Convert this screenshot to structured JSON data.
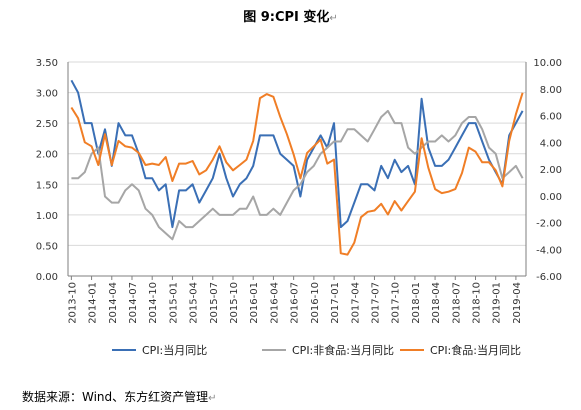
{
  "page": {
    "title": "图 9:CPI 变化",
    "source": "数据来源：Wind、东方红资产管理"
  },
  "colors": {
    "cpi": "#3a6fb5",
    "nonfood": "#a6a6a6",
    "food": "#f07e26",
    "axis": "#7f7f7f",
    "grid": "#d9d9d9"
  },
  "chart_data": {
    "type": "line",
    "x_labels": [
      "2013-10",
      "2014-01",
      "2014-04",
      "2014-07",
      "2014-10",
      "2015-01",
      "2015-04",
      "2015-07",
      "2015-10",
      "2016-01",
      "2016-04",
      "2016-07",
      "2016-10",
      "2017-01",
      "2017-04",
      "2017-07",
      "2017-10",
      "2018-01",
      "2018-04",
      "2018-07",
      "2018-10",
      "2019-01",
      "2019-04"
    ],
    "x": [
      "2013-10",
      "2013-11",
      "2013-12",
      "2014-01",
      "2014-02",
      "2014-03",
      "2014-04",
      "2014-05",
      "2014-06",
      "2014-07",
      "2014-08",
      "2014-09",
      "2014-10",
      "2014-11",
      "2014-12",
      "2015-01",
      "2015-02",
      "2015-03",
      "2015-04",
      "2015-05",
      "2015-06",
      "2015-07",
      "2015-08",
      "2015-09",
      "2015-10",
      "2015-11",
      "2015-12",
      "2016-01",
      "2016-02",
      "2016-03",
      "2016-04",
      "2016-05",
      "2016-06",
      "2016-07",
      "2016-08",
      "2016-09",
      "2016-10",
      "2016-11",
      "2016-12",
      "2017-01",
      "2017-02",
      "2017-03",
      "2017-04",
      "2017-05",
      "2017-06",
      "2017-07",
      "2017-08",
      "2017-09",
      "2017-10",
      "2017-11",
      "2017-12",
      "2018-01",
      "2018-02",
      "2018-03",
      "2018-04",
      "2018-05",
      "2018-06",
      "2018-07",
      "2018-08",
      "2018-09",
      "2018-10",
      "2018-11",
      "2018-12",
      "2019-01",
      "2019-02",
      "2019-03",
      "2019-04",
      "2019-05"
    ],
    "y_left": {
      "min": 0,
      "max": 3.5,
      "step": 0.5,
      "format": 2
    },
    "y_right": {
      "min": -6,
      "max": 10,
      "step": 2,
      "format": 2
    },
    "series": [
      {
        "name": "CPI:当月同比",
        "axis": "left",
        "values": [
          3.2,
          3.0,
          2.5,
          2.5,
          2.0,
          2.4,
          1.8,
          2.5,
          2.3,
          2.3,
          2.0,
          1.6,
          1.6,
          1.4,
          1.5,
          0.8,
          1.4,
          1.4,
          1.5,
          1.2,
          1.4,
          1.6,
          2.0,
          1.6,
          1.3,
          1.5,
          1.6,
          1.8,
          2.3,
          2.3,
          2.3,
          2.0,
          1.9,
          1.8,
          1.3,
          1.9,
          2.1,
          2.3,
          2.1,
          2.5,
          0.8,
          0.9,
          1.2,
          1.5,
          1.5,
          1.4,
          1.8,
          1.6,
          1.9,
          1.7,
          1.8,
          1.5,
          2.9,
          2.1,
          1.8,
          1.8,
          1.9,
          2.1,
          2.3,
          2.5,
          2.5,
          2.2,
          1.9,
          1.7,
          1.5,
          2.3,
          2.5,
          2.7
        ]
      },
      {
        "name": "CPI:非食品:当月同比",
        "axis": "left",
        "values": [
          1.6,
          1.6,
          1.7,
          2.0,
          2.1,
          1.3,
          1.2,
          1.2,
          1.4,
          1.5,
          1.4,
          1.1,
          1.0,
          0.8,
          0.7,
          0.6,
          0.9,
          0.8,
          0.8,
          0.9,
          1.0,
          1.1,
          1.0,
          1.0,
          1.0,
          1.1,
          1.1,
          1.3,
          1.0,
          1.0,
          1.1,
          1.0,
          1.2,
          1.4,
          1.5,
          1.7,
          1.8,
          2.0,
          2.1,
          2.2,
          2.2,
          2.4,
          2.4,
          2.3,
          2.2,
          2.4,
          2.6,
          2.7,
          2.5,
          2.5,
          2.1,
          2.0,
          2.1,
          2.2,
          2.2,
          2.3,
          2.2,
          2.3,
          2.5,
          2.6,
          2.6,
          2.4,
          2.1,
          2.0,
          1.6,
          1.7,
          1.8,
          1.6
        ]
      },
      {
        "name": "CPI:食品:当月同比",
        "axis": "right",
        "values": [
          6.6,
          5.8,
          4.0,
          3.7,
          2.3,
          4.6,
          2.3,
          4.1,
          3.7,
          3.6,
          3.2,
          2.3,
          2.4,
          2.3,
          2.9,
          1.1,
          2.4,
          2.4,
          2.6,
          1.6,
          1.9,
          2.7,
          3.7,
          2.5,
          1.9,
          2.3,
          2.7,
          4.1,
          7.3,
          7.6,
          7.4,
          5.9,
          4.6,
          3.1,
          1.3,
          3.2,
          3.7,
          4.2,
          2.4,
          2.7,
          -4.3,
          -4.4,
          -3.5,
          -1.6,
          -1.2,
          -1.1,
          -0.6,
          -1.4,
          -0.4,
          -1.1,
          -0.4,
          0.3,
          4.3,
          2.1,
          0.5,
          0.2,
          0.3,
          0.5,
          1.7,
          3.6,
          3.3,
          2.5,
          2.5,
          1.9,
          0.7,
          4.1,
          6.1,
          7.7
        ]
      }
    ],
    "legend_position": "bottom",
    "grid": "horizontal"
  }
}
